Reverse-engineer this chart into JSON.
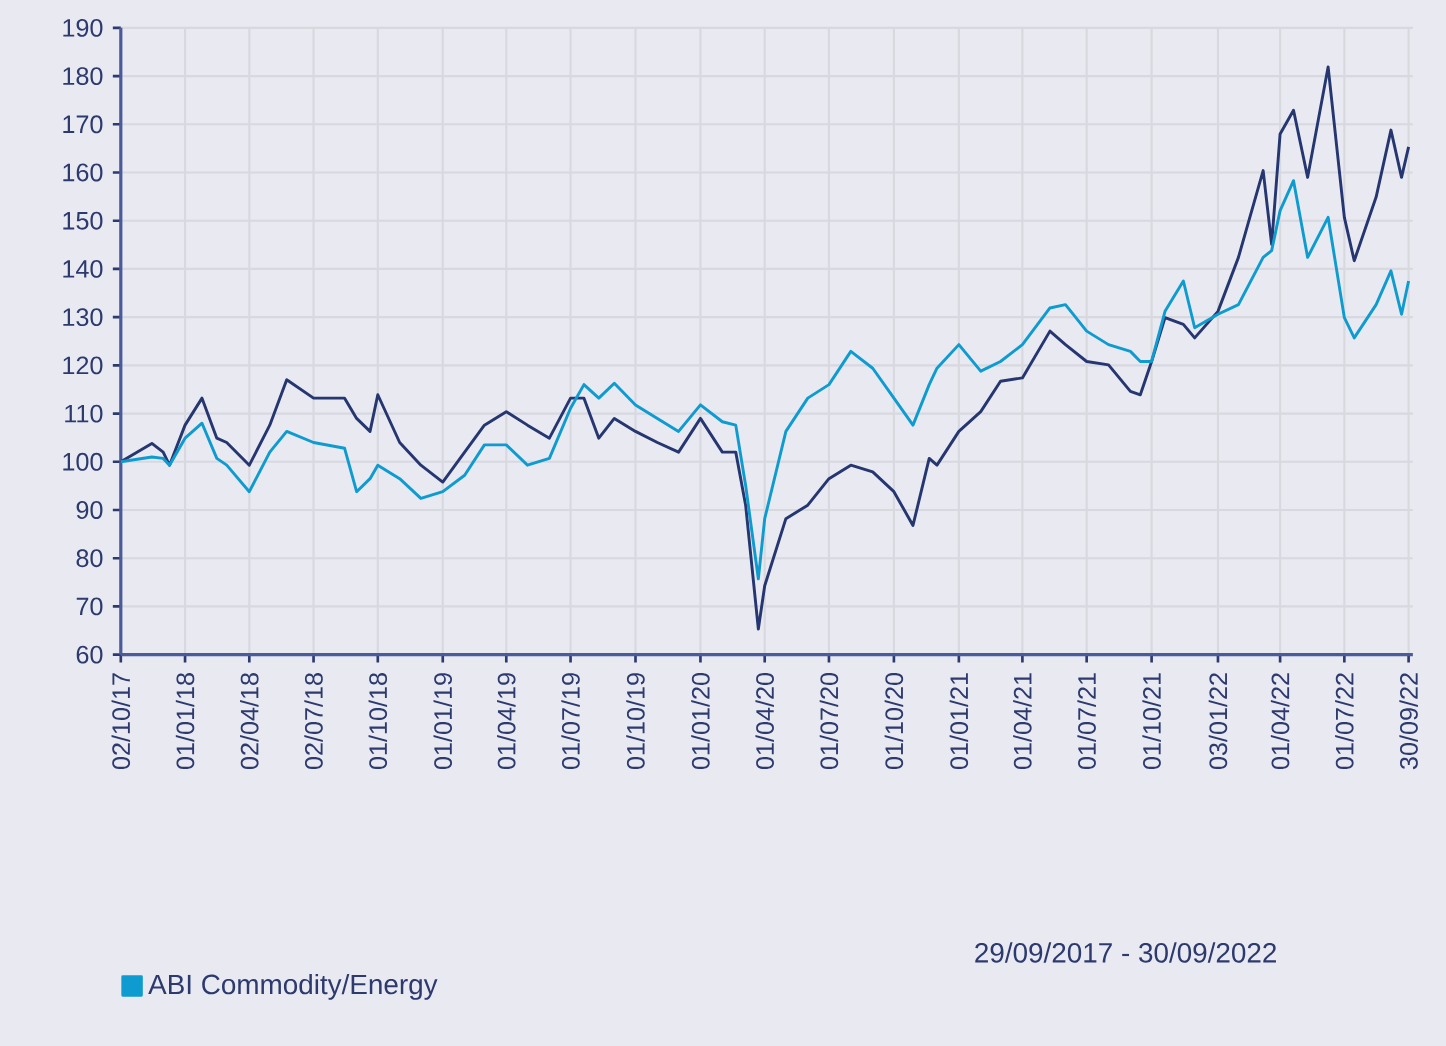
{
  "chart_data": {
    "type": "line",
    "x": [
      "2017-10-02",
      "2017-11-15",
      "2017-12-01",
      "2017-12-10",
      "2018-01-01",
      "2018-01-25",
      "2018-02-15",
      "2018-03-01",
      "2018-04-02",
      "2018-05-01",
      "2018-05-25",
      "2018-07-02",
      "2018-08-15",
      "2018-09-01",
      "2018-09-20",
      "2018-10-01",
      "2018-11-01",
      "2018-12-01",
      "2019-01-01",
      "2019-02-01",
      "2019-03-01",
      "2019-04-01",
      "2019-05-01",
      "2019-06-01",
      "2019-07-01",
      "2019-07-20",
      "2019-08-10",
      "2019-09-01",
      "2019-10-01",
      "2019-11-01",
      "2019-12-01",
      "2020-01-01",
      "2020-02-01",
      "2020-02-20",
      "2020-03-05",
      "2020-03-23",
      "2020-04-01",
      "2020-05-01",
      "2020-06-01",
      "2020-07-01",
      "2020-08-01",
      "2020-09-01",
      "2020-10-01",
      "2020-10-28",
      "2020-11-20",
      "2020-12-01",
      "2021-01-01",
      "2021-02-01",
      "2021-03-01",
      "2021-04-01",
      "2021-05-10",
      "2021-06-01",
      "2021-07-01",
      "2021-08-01",
      "2021-09-01",
      "2021-09-15",
      "2021-10-01",
      "2021-10-20",
      "2021-11-15",
      "2021-12-01",
      "2022-01-03",
      "2022-02-01",
      "2022-03-08",
      "2022-03-20",
      "2022-04-01",
      "2022-04-20",
      "2022-05-10",
      "2022-06-08",
      "2022-07-01",
      "2022-07-15",
      "2022-08-15",
      "2022-09-05",
      "2022-09-20",
      "2022-09-30"
    ],
    "series": [
      {
        "color": "#253670",
        "values": [
          100,
          103.8,
          102,
          99.3,
          107.6,
          113.2,
          104.9,
          104,
          99.3,
          107.6,
          117,
          113.2,
          113.2,
          109,
          106.3,
          113.9,
          104,
          99.3,
          95.8,
          102,
          107.6,
          110.4,
          107.6,
          104.9,
          113.2,
          113.2,
          104.9,
          109,
          106.3,
          104,
          102,
          109,
          102,
          102,
          91,
          65.3,
          74.3,
          88.2,
          91,
          96.5,
          99.3,
          97.9,
          93.8,
          86.8,
          100.7,
          99.3,
          106.3,
          110.4,
          116.7,
          117.4,
          127.1,
          124.3,
          120.8,
          120.1,
          114.6,
          113.9,
          120.8,
          129.9,
          128.5,
          125.7,
          131.2,
          142.4,
          160.4,
          145.1,
          168,
          172.9,
          159,
          181.9,
          150.7,
          141.7,
          154.9,
          168.8,
          159,
          165.3
        ]
      },
      {
        "name": "ABI Commodity/Energy",
        "color": "#0e9bd0",
        "values": [
          100,
          101,
          100.7,
          99.3,
          104.9,
          108,
          100.7,
          99.3,
          93.8,
          102,
          106.3,
          104,
          102.8,
          93.8,
          96.5,
          99.3,
          96.5,
          92.4,
          93.8,
          97.2,
          103.5,
          103.5,
          99.3,
          100.7,
          111.1,
          116,
          113.2,
          116.3,
          111.8,
          109,
          106.3,
          111.8,
          108.3,
          107.6,
          95.1,
          75.7,
          88.2,
          106.3,
          113.2,
          116,
          122.9,
          119.4,
          113.2,
          107.6,
          116,
          119.4,
          124.3,
          118.8,
          120.8,
          124.3,
          131.9,
          132.6,
          127.1,
          124.3,
          122.9,
          120.8,
          120.8,
          131.2,
          137.5,
          127.8,
          130.6,
          132.6,
          142.4,
          143.8,
          152.1,
          158.3,
          142.4,
          150.7,
          129.9,
          125.7,
          132.6,
          139.6,
          130.6,
          137.5
        ]
      }
    ],
    "xlim": [
      "2017-10-02",
      "2022-10-06"
    ],
    "xticks": [
      {
        "value": "2017-10-02",
        "label": "02/10/17"
      },
      {
        "value": "2018-01-01",
        "label": "01/01/18"
      },
      {
        "value": "2018-04-02",
        "label": "02/04/18"
      },
      {
        "value": "2018-07-02",
        "label": "02/07/18"
      },
      {
        "value": "2018-10-01",
        "label": "01/10/18"
      },
      {
        "value": "2019-01-01",
        "label": "01/01/19"
      },
      {
        "value": "2019-04-01",
        "label": "01/04/19"
      },
      {
        "value": "2019-07-01",
        "label": "01/07/19"
      },
      {
        "value": "2019-10-01",
        "label": "01/10/19"
      },
      {
        "value": "2020-01-01",
        "label": "01/01/20"
      },
      {
        "value": "2020-04-01",
        "label": "01/04/20"
      },
      {
        "value": "2020-07-01",
        "label": "01/07/20"
      },
      {
        "value": "2020-10-01",
        "label": "01/10/20"
      },
      {
        "value": "2021-01-01",
        "label": "01/01/21"
      },
      {
        "value": "2021-04-01",
        "label": "01/04/21"
      },
      {
        "value": "2021-07-01",
        "label": "01/07/21"
      },
      {
        "value": "2021-10-01",
        "label": "01/10/21"
      },
      {
        "value": "2022-01-03",
        "label": "03/01/22"
      },
      {
        "value": "2022-04-01",
        "label": "01/04/22"
      },
      {
        "value": "2022-07-01",
        "label": "01/07/22"
      },
      {
        "value": "2022-09-30",
        "label": "30/09/22"
      }
    ],
    "ylim": [
      60,
      190
    ],
    "yticks": [
      60,
      70,
      80,
      90,
      100,
      110,
      120,
      130,
      140,
      150,
      160,
      170,
      180,
      190
    ],
    "grid": true,
    "legend": "bottom",
    "annotations": [
      "29/09/2017 - 30/09/2022"
    ]
  }
}
